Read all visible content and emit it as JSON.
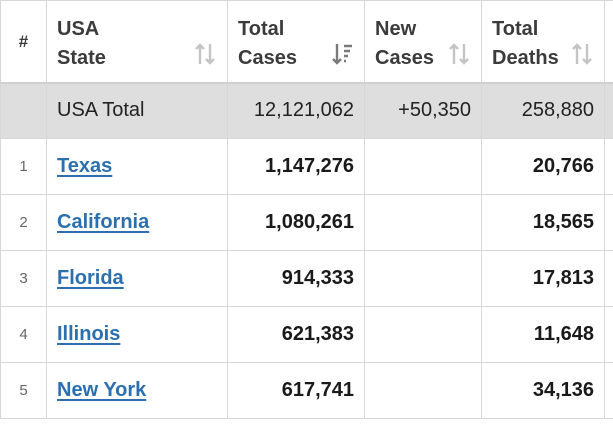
{
  "table": {
    "headers": {
      "num": "#",
      "state": "USA\nState",
      "total_cases": "Total\nCases",
      "new_cases": "New\nCases",
      "total_deaths": "Total\nDeaths"
    },
    "total_row": {
      "label": "USA Total",
      "total_cases": "12,121,062",
      "new_cases": "+50,350",
      "total_deaths": "258,880"
    },
    "rows": [
      {
        "num": "1",
        "state": "Texas",
        "total_cases": "1,147,276",
        "new_cases": "",
        "total_deaths": "20,766"
      },
      {
        "num": "2",
        "state": "California",
        "total_cases": "1,080,261",
        "new_cases": "",
        "total_deaths": "18,565"
      },
      {
        "num": "3",
        "state": "Florida",
        "total_cases": "914,333",
        "new_cases": "",
        "total_deaths": "17,813"
      },
      {
        "num": "4",
        "state": "Illinois",
        "total_cases": "621,383",
        "new_cases": "",
        "total_deaths": "11,648"
      },
      {
        "num": "5",
        "state": "New York",
        "total_cases": "617,741",
        "new_cases": "",
        "total_deaths": "34,136"
      }
    ]
  },
  "colors": {
    "link": "#2c6fae",
    "total_row_bg": "#dedede",
    "border": "#d7d7d7",
    "sort_icon": "#c4c4c4",
    "sort_icon_active": "#7a7a7a"
  },
  "icons": {
    "sort_default": "sort-arrows-icon",
    "sort_active": "sort-descending-icon"
  }
}
